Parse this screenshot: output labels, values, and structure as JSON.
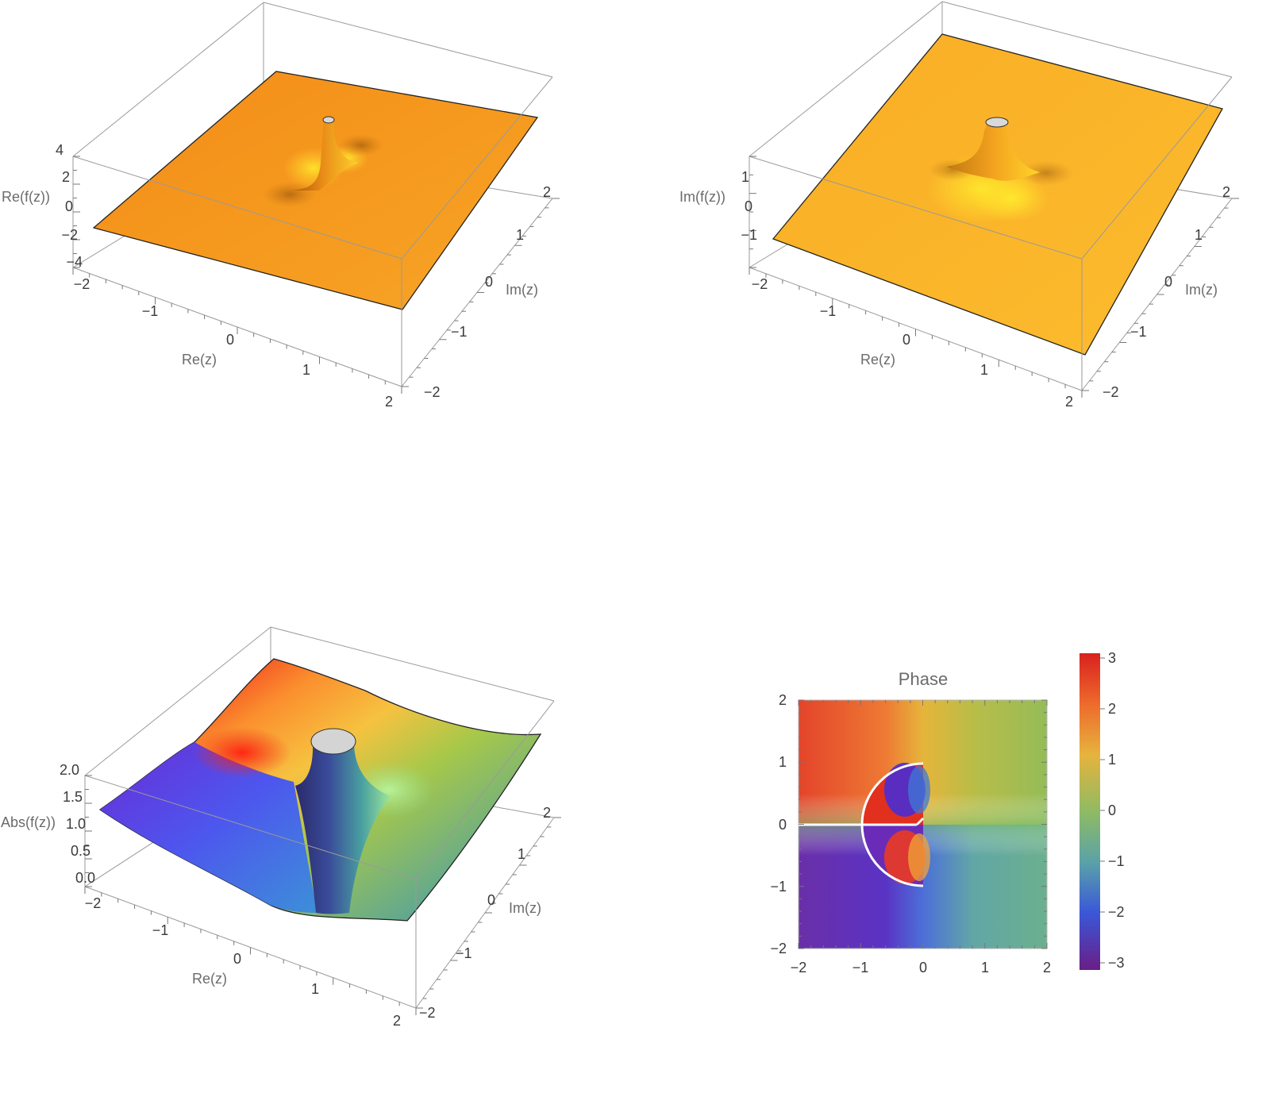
{
  "chart_data": [
    {
      "id": "re",
      "type": "surface3d",
      "xlabel": "Re(z)",
      "ylabel": "Im(z)",
      "zlabel": "Re(f(z))",
      "x_ticks": [
        "−2",
        "−1",
        "0",
        "1",
        "2"
      ],
      "y_ticks": [
        "−2",
        "−1",
        "0",
        "1",
        "2"
      ],
      "z_ticks": [
        "4",
        "2",
        "0",
        "−2",
        "−4"
      ],
      "xlim": [
        -2,
        2
      ],
      "ylim": [
        -2,
        2
      ],
      "zlim": [
        -4,
        4
      ],
      "colors": {
        "surface": "#f59a1e",
        "highlight": "#ffd12e",
        "shadow": "#b8650e"
      }
    },
    {
      "id": "im",
      "type": "surface3d",
      "xlabel": "Re(z)",
      "ylabel": "Im(z)",
      "zlabel": "Im(f(z))",
      "x_ticks": [
        "−2",
        "−1",
        "0",
        "1",
        "2"
      ],
      "y_ticks": [
        "−2",
        "−1",
        "0",
        "1",
        "2"
      ],
      "z_ticks": [
        "1",
        "0",
        "−1"
      ],
      "xlim": [
        -2,
        2
      ],
      "ylim": [
        -2,
        2
      ],
      "zlim": [
        -1.5,
        1.5
      ],
      "colors": {
        "surface": "#fbb52a",
        "highlight": "#ffe12c",
        "shadow": "#c2791a"
      }
    },
    {
      "id": "abs",
      "type": "surface3d",
      "xlabel": "Re(z)",
      "ylabel": "Im(z)",
      "zlabel": "Abs(f(z))",
      "x_ticks": [
        "−2",
        "−1",
        "0",
        "1",
        "2"
      ],
      "y_ticks": [
        "−2",
        "−1",
        "0",
        "1",
        "2"
      ],
      "z_ticks": [
        "2.0",
        "1.5",
        "1.0",
        "0.5",
        "0.0"
      ],
      "xlim": [
        -2,
        2
      ],
      "ylim": [
        -2,
        2
      ],
      "zlim": [
        0,
        2
      ],
      "colors": {
        "red": "#ef2a1d",
        "orange": "#fb9a30",
        "yellow": "#f6c240",
        "green": "#a6c84a",
        "teal": "#55a29c",
        "blue": "#4d6cf0",
        "purple": "#6e2ad6"
      }
    },
    {
      "id": "phase",
      "type": "heatmap",
      "title": "Phase",
      "xlim": [
        -2,
        2
      ],
      "ylim": [
        -2,
        2
      ],
      "x_ticks": [
        "−2",
        "−1",
        "0",
        "1",
        "2"
      ],
      "y_ticks": [
        "2",
        "1",
        "0",
        "−1",
        "−2"
      ],
      "colorbar": {
        "range": [
          -3.14159,
          3.14159
        ],
        "ticks": [
          "3",
          "2",
          "1",
          "0",
          "−1",
          "−2",
          "−3"
        ]
      },
      "branch_cut": {
        "semicircle_radius": 1,
        "semicircle_center": [
          0,
          0
        ],
        "ray_from": [
          -2,
          0
        ],
        "ray_to": [
          0,
          0
        ]
      }
    }
  ]
}
